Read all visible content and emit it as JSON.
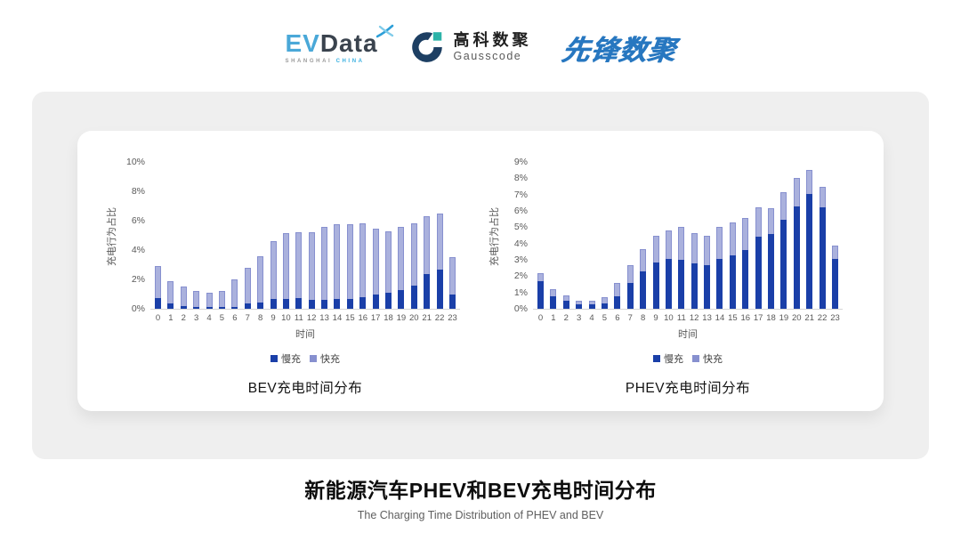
{
  "header": {
    "evdata": {
      "ev": "EV",
      "data": "Data",
      "sub1": "SHANGHAI",
      "sub2": "CHINA"
    },
    "gausscode": {
      "name_cn": "高科数聚",
      "name_en": "Gausscode"
    },
    "pioneer": {
      "name": "先锋数聚"
    }
  },
  "footer": {
    "title_cn": "新能源汽车PHEV和BEV充电时间分布",
    "title_en": "The Charging Time Distribution of PHEV and BEV"
  },
  "colors": {
    "slow_charge": "#1a3fa8",
    "fast_charge_fill": "#aab1dd",
    "fast_charge_border": "#8790cf",
    "panel_bg": "#efefef",
    "axis_text": "#595959",
    "evdata_blue": "#4aa8d8",
    "evdata_dark": "#3a434e",
    "gauss_navy": "#1d3f63",
    "gauss_teal": "#2cb3a8",
    "pioneer_blue": "#2777c0"
  },
  "chart_data": [
    {
      "type": "bar",
      "stacked": true,
      "title": "BEV充电时间分布",
      "xlabel": "时间",
      "ylabel": "充电行为占比",
      "ylim": [
        0,
        10
      ],
      "ytick_step": 2,
      "ytick_suffix": "%",
      "grid": false,
      "legend_position": "bottom",
      "categories": [
        "0",
        "1",
        "2",
        "3",
        "4",
        "5",
        "6",
        "7",
        "8",
        "9",
        "10",
        "11",
        "12",
        "13",
        "14",
        "15",
        "16",
        "17",
        "18",
        "19",
        "20",
        "21",
        "22",
        "23"
      ],
      "series": [
        {
          "name": "慢充",
          "color": "#1a3fa8",
          "values": [
            0.7,
            0.35,
            0.2,
            0.1,
            0.1,
            0.1,
            0.15,
            0.35,
            0.45,
            0.65,
            0.65,
            0.7,
            0.6,
            0.6,
            0.65,
            0.65,
            0.8,
            0.95,
            1.1,
            1.3,
            1.55,
            2.35,
            2.65,
            0.95
          ]
        },
        {
          "name": "快充",
          "color": "#aab1dd",
          "values": [
            2.2,
            1.55,
            1.3,
            1.1,
            1.0,
            1.1,
            1.85,
            2.45,
            3.15,
            3.95,
            4.5,
            4.5,
            4.6,
            5.0,
            5.1,
            5.1,
            5.0,
            4.5,
            4.15,
            4.25,
            4.3,
            3.95,
            3.85,
            2.55
          ]
        }
      ]
    },
    {
      "type": "bar",
      "stacked": true,
      "title": "PHEV充电时间分布",
      "xlabel": "时间",
      "ylabel": "充电行为占比",
      "ylim": [
        0,
        9
      ],
      "ytick_step": 1,
      "ytick_suffix": "%",
      "grid": false,
      "legend_position": "bottom",
      "categories": [
        "0",
        "1",
        "2",
        "3",
        "4",
        "5",
        "6",
        "7",
        "8",
        "9",
        "10",
        "11",
        "12",
        "13",
        "14",
        "15",
        "16",
        "17",
        "18",
        "19",
        "20",
        "21",
        "22",
        "23"
      ],
      "series": [
        {
          "name": "慢充",
          "color": "#1a3fa8",
          "values": [
            1.7,
            0.75,
            0.5,
            0.25,
            0.25,
            0.35,
            0.75,
            1.6,
            2.3,
            2.85,
            3.05,
            3.0,
            2.8,
            2.65,
            3.05,
            3.3,
            3.6,
            4.4,
            4.6,
            5.45,
            6.25,
            7.05,
            6.2,
            3.05
          ]
        },
        {
          "name": "快充",
          "color": "#aab1dd",
          "values": [
            0.5,
            0.45,
            0.3,
            0.25,
            0.25,
            0.35,
            0.85,
            1.1,
            1.35,
            1.65,
            1.75,
            2.0,
            1.85,
            1.85,
            1.95,
            2.0,
            1.95,
            1.8,
            1.55,
            1.7,
            1.75,
            1.45,
            1.25,
            0.8
          ]
        }
      ]
    }
  ]
}
